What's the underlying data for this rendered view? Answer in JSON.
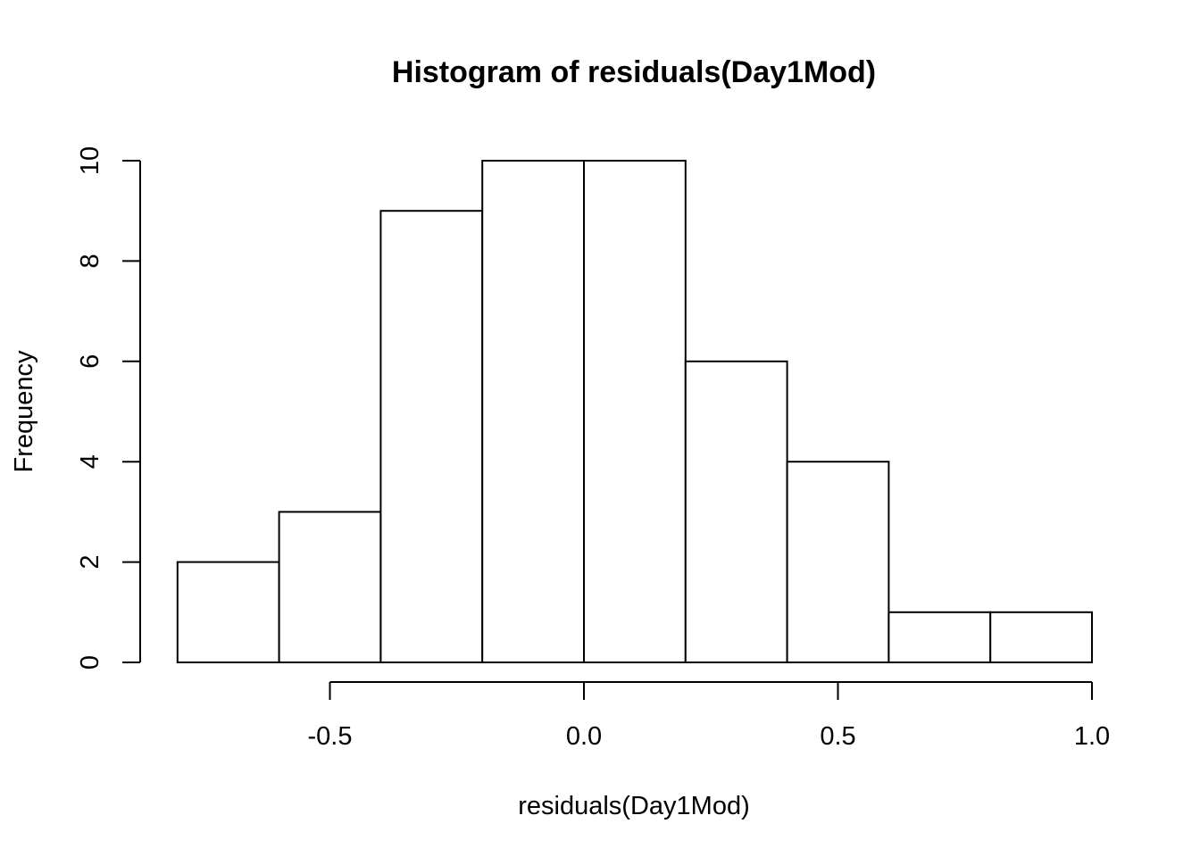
{
  "chart_data": {
    "type": "bar",
    "title": "Histogram of residuals(Day1Mod)",
    "xlabel": "residuals(Day1Mod)",
    "ylabel": "Frequency",
    "bins": [
      {
        "from": -0.8,
        "to": -0.6,
        "count": 2
      },
      {
        "from": -0.6,
        "to": -0.4,
        "count": 3
      },
      {
        "from": -0.4,
        "to": -0.2,
        "count": 9
      },
      {
        "from": -0.2,
        "to": 0.0,
        "count": 10
      },
      {
        "from": 0.0,
        "to": 0.2,
        "count": 10
      },
      {
        "from": 0.2,
        "to": 0.4,
        "count": 6
      },
      {
        "from": 0.4,
        "to": 0.6,
        "count": 4
      },
      {
        "from": 0.6,
        "to": 0.8,
        "count": 1
      },
      {
        "from": 0.8,
        "to": 1.0,
        "count": 1
      }
    ],
    "x_ticks": [
      "-0.5",
      "0.0",
      "0.5",
      "1.0"
    ],
    "y_ticks": [
      "0",
      "2",
      "4",
      "6",
      "8",
      "10"
    ],
    "xlim": [
      -0.8,
      1.0
    ],
    "ylim": [
      0,
      10
    ],
    "grid": false,
    "bar_fill": "#ffffff",
    "bar_stroke": "#000000"
  }
}
